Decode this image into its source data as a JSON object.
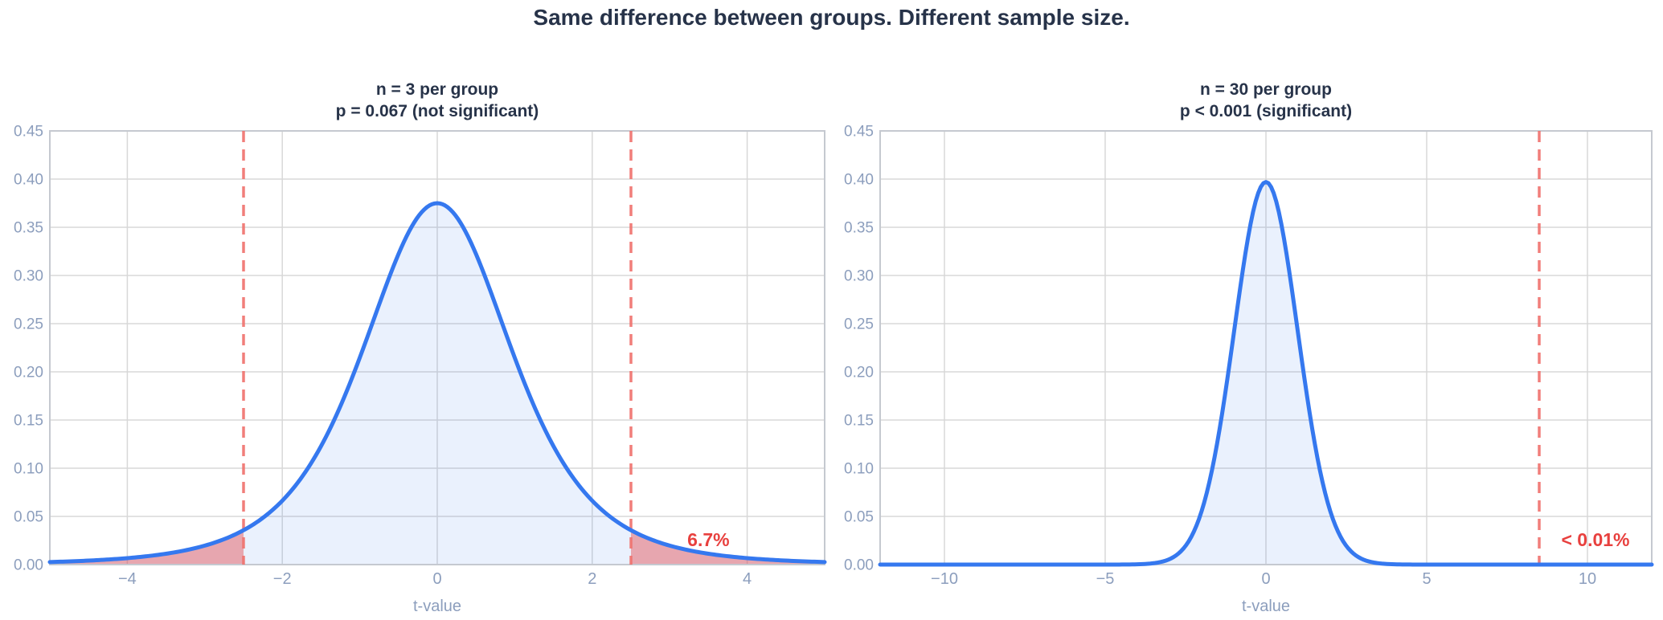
{
  "main_title": "Same difference between groups. Different sample size.",
  "colors": {
    "title_text": "#273349",
    "tick_text": "#8C9EBD",
    "grid": "#d8d8d8",
    "border": "#c5c9d0",
    "curve": "#3578ef",
    "curve_fill": "rgba(53,120,239,0.10)",
    "tail_fill": "rgba(228,75,80,0.45)",
    "critical_line": "#f0716c",
    "annotation_text": "#e8403e",
    "background": "#ffffff"
  },
  "chart_data": [
    {
      "type": "area",
      "subtitle_line1": "n = 3 per group",
      "subtitle_line2": "p = 0.067 (not significant)",
      "xlabel": "t-value",
      "xlim": [
        -5,
        5
      ],
      "ylim": [
        0,
        0.45
      ],
      "xticks": [
        -4,
        -2,
        0,
        2,
        4
      ],
      "xtick_labels": [
        "−4",
        "−2",
        "0",
        "2",
        "4"
      ],
      "yticks": [
        0,
        0.05,
        0.1,
        0.15,
        0.2,
        0.25,
        0.3,
        0.35,
        0.4,
        0.45
      ],
      "ytick_labels": [
        "0.00",
        "0.05",
        "0.10",
        "0.15",
        "0.20",
        "0.25",
        "0.30",
        "0.35",
        "0.40",
        "0.45"
      ],
      "grid": true,
      "curve": {
        "distribution": "student_t",
        "df": 4,
        "peak_density": 0.375
      },
      "sample_points": [
        [
          -5,
          0.0027
        ],
        [
          -4,
          0.0067
        ],
        [
          -3,
          0.0197
        ],
        [
          -2.5,
          0.0357
        ],
        [
          -2,
          0.0663
        ],
        [
          -1,
          0.2147
        ],
        [
          0,
          0.375
        ],
        [
          1,
          0.2147
        ],
        [
          2,
          0.0663
        ],
        [
          2.5,
          0.0357
        ],
        [
          3,
          0.0197
        ],
        [
          4,
          0.0067
        ],
        [
          5,
          0.0027
        ]
      ],
      "critical_lines": [
        -2.5,
        2.5
      ],
      "shaded_tails": [
        {
          "from": -5,
          "to": -2.5
        },
        {
          "from": 2.5,
          "to": 5
        }
      ],
      "annotation": {
        "text": "6.7%",
        "x": 3.5,
        "y": 0.026
      }
    },
    {
      "type": "area",
      "subtitle_line1": "n = 30 per group",
      "subtitle_line2": "p < 0.001 (significant)",
      "xlabel": "t-value",
      "xlim": [
        -12,
        12
      ],
      "ylim": [
        0,
        0.45
      ],
      "xticks": [
        -10,
        -5,
        0,
        5,
        10
      ],
      "xtick_labels": [
        "−10",
        "−5",
        "0",
        "5",
        "10"
      ],
      "yticks": [
        0,
        0.05,
        0.1,
        0.15,
        0.2,
        0.25,
        0.3,
        0.35,
        0.4,
        0.45
      ],
      "ytick_labels": [
        "0.00",
        "0.05",
        "0.10",
        "0.15",
        "0.20",
        "0.25",
        "0.30",
        "0.35",
        "0.40",
        "0.45"
      ],
      "grid": true,
      "curve": {
        "distribution": "student_t",
        "df": 58,
        "peak_density": 0.397
      },
      "sample_points": [
        [
          -12,
          0
        ],
        [
          -5,
          1e-05
        ],
        [
          -4,
          0.0003
        ],
        [
          -3,
          0.0056
        ],
        [
          -2,
          0.0555
        ],
        [
          -1,
          0.2398
        ],
        [
          0,
          0.397
        ],
        [
          1,
          0.2398
        ],
        [
          2,
          0.0555
        ],
        [
          3,
          0.0056
        ],
        [
          4,
          0.0003
        ],
        [
          5,
          1e-05
        ],
        [
          12,
          0
        ]
      ],
      "critical_lines": [
        8.5
      ],
      "shaded_tails": [],
      "annotation": {
        "text": "< 0.01%",
        "x": 10.25,
        "y": 0.026
      }
    }
  ]
}
